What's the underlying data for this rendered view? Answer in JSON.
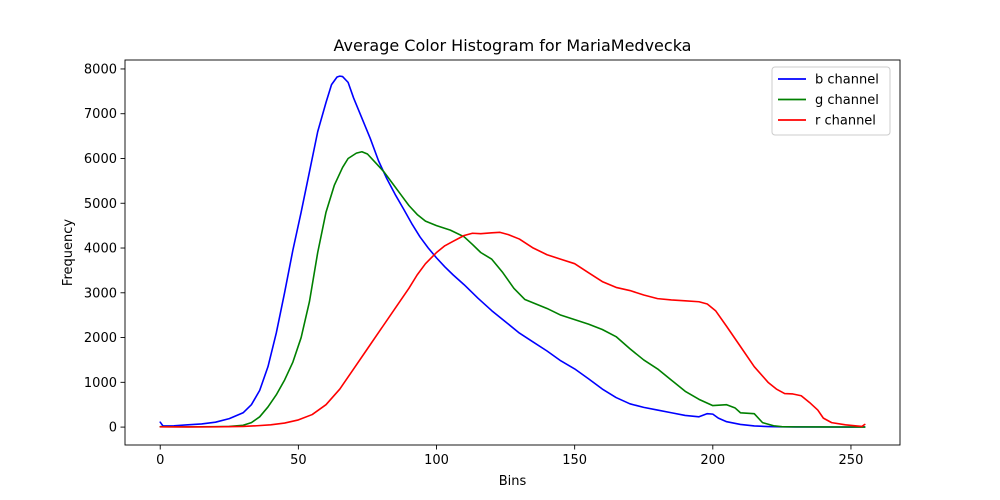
{
  "chart_data": {
    "type": "line",
    "title": "Average Color Histogram for MariaMedvecka",
    "xlabel": "Bins",
    "ylabel": "Frequency",
    "xlim": [
      -12.75,
      267.75
    ],
    "ylim": [
      -400,
      8200
    ],
    "xticks": [
      0,
      50,
      100,
      150,
      200,
      250
    ],
    "yticks": [
      0,
      1000,
      2000,
      3000,
      4000,
      5000,
      6000,
      7000,
      8000
    ],
    "grid": false,
    "legend_position": "upper-right",
    "series": [
      {
        "name": "b channel",
        "color": "#0000ff",
        "points": [
          [
            0,
            110
          ],
          [
            1,
            25
          ],
          [
            5,
            30
          ],
          [
            10,
            50
          ],
          [
            15,
            70
          ],
          [
            20,
            110
          ],
          [
            25,
            190
          ],
          [
            30,
            320
          ],
          [
            33,
            500
          ],
          [
            36,
            820
          ],
          [
            39,
            1350
          ],
          [
            42,
            2100
          ],
          [
            45,
            3000
          ],
          [
            48,
            3950
          ],
          [
            51,
            4800
          ],
          [
            54,
            5700
          ],
          [
            57,
            6600
          ],
          [
            60,
            7250
          ],
          [
            62,
            7650
          ],
          [
            64,
            7820
          ],
          [
            65,
            7840
          ],
          [
            66,
            7830
          ],
          [
            68,
            7700
          ],
          [
            70,
            7350
          ],
          [
            73,
            6900
          ],
          [
            76,
            6450
          ],
          [
            79,
            5950
          ],
          [
            82,
            5550
          ],
          [
            85,
            5200
          ],
          [
            88,
            4880
          ],
          [
            91,
            4550
          ],
          [
            94,
            4250
          ],
          [
            97,
            4000
          ],
          [
            100,
            3780
          ],
          [
            103,
            3580
          ],
          [
            106,
            3400
          ],
          [
            110,
            3180
          ],
          [
            115,
            2880
          ],
          [
            120,
            2600
          ],
          [
            125,
            2350
          ],
          [
            130,
            2100
          ],
          [
            135,
            1900
          ],
          [
            140,
            1700
          ],
          [
            145,
            1480
          ],
          [
            150,
            1300
          ],
          [
            155,
            1080
          ],
          [
            160,
            850
          ],
          [
            165,
            660
          ],
          [
            170,
            520
          ],
          [
            175,
            440
          ],
          [
            180,
            380
          ],
          [
            185,
            320
          ],
          [
            190,
            260
          ],
          [
            195,
            230
          ],
          [
            198,
            300
          ],
          [
            200,
            290
          ],
          [
            202,
            200
          ],
          [
            205,
            120
          ],
          [
            210,
            60
          ],
          [
            215,
            25
          ],
          [
            220,
            12
          ],
          [
            225,
            5
          ],
          [
            230,
            3
          ],
          [
            240,
            2
          ],
          [
            250,
            1
          ],
          [
            255,
            5
          ]
        ]
      },
      {
        "name": "g channel",
        "color": "#008000",
        "points": [
          [
            0,
            8
          ],
          [
            10,
            5
          ],
          [
            20,
            8
          ],
          [
            25,
            15
          ],
          [
            30,
            40
          ],
          [
            33,
            100
          ],
          [
            36,
            230
          ],
          [
            39,
            450
          ],
          [
            42,
            720
          ],
          [
            45,
            1050
          ],
          [
            48,
            1450
          ],
          [
            51,
            2000
          ],
          [
            54,
            2800
          ],
          [
            57,
            3900
          ],
          [
            60,
            4800
          ],
          [
            63,
            5400
          ],
          [
            66,
            5800
          ],
          [
            68,
            6000
          ],
          [
            71,
            6120
          ],
          [
            73,
            6150
          ],
          [
            75,
            6100
          ],
          [
            78,
            5900
          ],
          [
            81,
            5700
          ],
          [
            84,
            5450
          ],
          [
            87,
            5200
          ],
          [
            90,
            4950
          ],
          [
            93,
            4750
          ],
          [
            96,
            4600
          ],
          [
            100,
            4500
          ],
          [
            105,
            4400
          ],
          [
            110,
            4250
          ],
          [
            113,
            4080
          ],
          [
            116,
            3900
          ],
          [
            120,
            3750
          ],
          [
            124,
            3450
          ],
          [
            128,
            3100
          ],
          [
            132,
            2850
          ],
          [
            136,
            2750
          ],
          [
            140,
            2650
          ],
          [
            145,
            2500
          ],
          [
            150,
            2400
          ],
          [
            155,
            2300
          ],
          [
            160,
            2180
          ],
          [
            165,
            2020
          ],
          [
            170,
            1750
          ],
          [
            175,
            1500
          ],
          [
            180,
            1300
          ],
          [
            185,
            1050
          ],
          [
            190,
            800
          ],
          [
            195,
            620
          ],
          [
            200,
            480
          ],
          [
            205,
            500
          ],
          [
            208,
            430
          ],
          [
            210,
            320
          ],
          [
            215,
            300
          ],
          [
            218,
            100
          ],
          [
            222,
            30
          ],
          [
            225,
            10
          ],
          [
            230,
            5
          ],
          [
            240,
            3
          ],
          [
            250,
            2
          ],
          [
            255,
            0
          ]
        ]
      },
      {
        "name": "r channel",
        "color": "#ff0000",
        "points": [
          [
            0,
            5
          ],
          [
            10,
            3
          ],
          [
            20,
            5
          ],
          [
            30,
            15
          ],
          [
            35,
            30
          ],
          [
            40,
            50
          ],
          [
            45,
            90
          ],
          [
            50,
            160
          ],
          [
            55,
            280
          ],
          [
            60,
            500
          ],
          [
            65,
            850
          ],
          [
            70,
            1300
          ],
          [
            75,
            1750
          ],
          [
            80,
            2200
          ],
          [
            85,
            2650
          ],
          [
            90,
            3100
          ],
          [
            93,
            3400
          ],
          [
            96,
            3650
          ],
          [
            100,
            3900
          ],
          [
            103,
            4050
          ],
          [
            106,
            4150
          ],
          [
            110,
            4280
          ],
          [
            113,
            4330
          ],
          [
            116,
            4320
          ],
          [
            120,
            4340
          ],
          [
            123,
            4350
          ],
          [
            126,
            4300
          ],
          [
            130,
            4200
          ],
          [
            135,
            4000
          ],
          [
            140,
            3850
          ],
          [
            145,
            3750
          ],
          [
            150,
            3650
          ],
          [
            155,
            3450
          ],
          [
            160,
            3250
          ],
          [
            165,
            3120
          ],
          [
            170,
            3050
          ],
          [
            175,
            2950
          ],
          [
            180,
            2870
          ],
          [
            185,
            2840
          ],
          [
            190,
            2820
          ],
          [
            195,
            2800
          ],
          [
            198,
            2750
          ],
          [
            201,
            2600
          ],
          [
            205,
            2250
          ],
          [
            210,
            1800
          ],
          [
            215,
            1350
          ],
          [
            220,
            1000
          ],
          [
            223,
            850
          ],
          [
            226,
            750
          ],
          [
            229,
            740
          ],
          [
            232,
            700
          ],
          [
            235,
            550
          ],
          [
            238,
            380
          ],
          [
            240,
            200
          ],
          [
            243,
            100
          ],
          [
            248,
            50
          ],
          [
            252,
            25
          ],
          [
            254,
            15
          ],
          [
            255,
            60
          ]
        ]
      }
    ]
  }
}
